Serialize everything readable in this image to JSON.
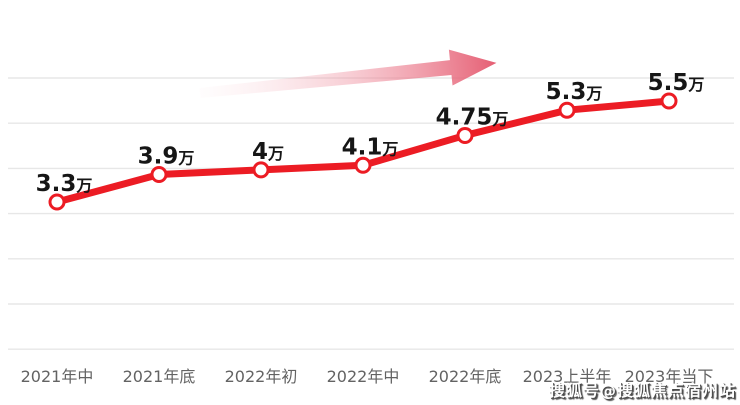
{
  "page": {
    "background": "#ffffff"
  },
  "chart_data": {
    "type": "line",
    "title": "",
    "xlabel": "",
    "ylabel": "",
    "unit": "万",
    "categories": [
      "2021年中",
      "2021年底",
      "2022年初",
      "2022年中",
      "2022年底",
      "2023上半年",
      "2023年当下"
    ],
    "values": [
      3.3,
      3.9,
      4,
      4.1,
      4.75,
      5.3,
      5.5
    ],
    "point_labels": [
      "3.3万",
      "3.9万",
      "4万",
      "4.1万",
      "4.75万",
      "5.3万",
      "5.5万"
    ],
    "ylim": [
      3.3,
      5.5
    ],
    "grid": true,
    "gridline_count": 7,
    "legend": false,
    "annotations": [
      "rising-trend-arrow-up-right"
    ],
    "colors": {
      "line": "#ec1c24",
      "marker_fill": "#ffffff",
      "marker_stroke": "#ec1c24",
      "point_label": "#161616",
      "axis_label": "#636363",
      "gridline": "#e7e7e7"
    },
    "arrow_gradient": [
      {
        "color": "#f8d3d9",
        "opacity": 0.05
      },
      {
        "color": "#ef93a2",
        "opacity": 0.45
      },
      {
        "color": "#e4566c",
        "opacity": 0.95
      }
    ]
  },
  "watermark": {
    "text": "搜狐号@搜狐焦点宿州站",
    "color": "#ffffff",
    "shadow_color": "#4a4a4a"
  }
}
